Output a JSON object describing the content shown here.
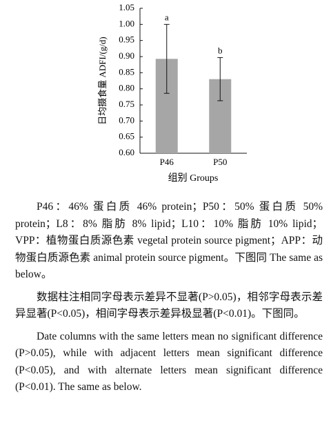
{
  "chart_data": {
    "type": "bar",
    "x_label": "组别 Groups",
    "y_label": "日均摄食量 ADFI/(g/d)",
    "categories": [
      "P46",
      "P50"
    ],
    "values": [
      0.893,
      0.83
    ],
    "errors": [
      0.107,
      0.067
    ],
    "annotations": [
      "a",
      "b"
    ],
    "color": "#a6a6a6",
    "ylim": [
      0.6,
      1.05
    ],
    "yticks": [
      {
        "value": 0.6,
        "label": "0.60"
      },
      {
        "value": 0.65,
        "label": "0.65"
      },
      {
        "value": 0.7,
        "label": "0.70"
      },
      {
        "value": 0.75,
        "label": "0.75"
      },
      {
        "value": 0.8,
        "label": "0.80"
      },
      {
        "value": 0.85,
        "label": "0.85"
      },
      {
        "value": 0.9,
        "label": "0.90"
      },
      {
        "value": 0.95,
        "label": "0.95"
      },
      {
        "value": 1.0,
        "label": "1.00"
      },
      {
        "value": 1.05,
        "label": "1.05"
      }
    ],
    "grid": false
  },
  "notes": {
    "paragraphs": [
      "P46：46% 蛋白质 46% protein；P50：50% 蛋白质 50% protein；L8：8% 脂肪 8% lipid；L10：10% 脂肪 10% lipid；VPP：植物蛋白质源色素 vegetal protein source pigment；APP：动物蛋白质源色素 animal protein source pigment。下图同 The same as below。",
      "数据柱注相同字母表示差异不显著(P>0.05)，相邻字母表示差异显著(P<0.05)，相间字母表示差异极显著(P<0.01)。下图同。",
      "Date columns with the same letters mean no significant difference (P>0.05), while with adjacent letters mean significant difference (P<0.05), and with alternate letters mean significant difference (P<0.01). The same as below."
    ]
  }
}
